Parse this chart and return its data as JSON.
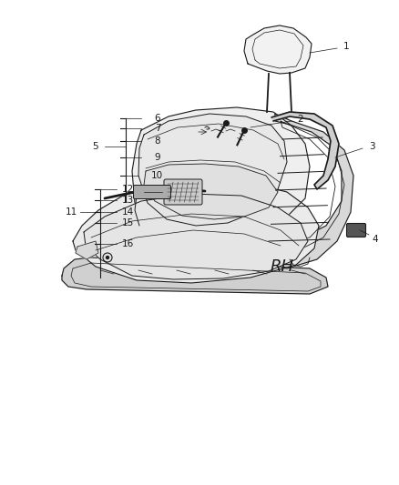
{
  "background_color": "#ffffff",
  "line_color": "#1a1a1a",
  "label_color": "#1a1a1a",
  "rh_text": "RH",
  "rh_fontsize": 13,
  "label_fontsize": 7.5,
  "figsize": [
    4.38,
    5.33
  ],
  "dpi": 100
}
